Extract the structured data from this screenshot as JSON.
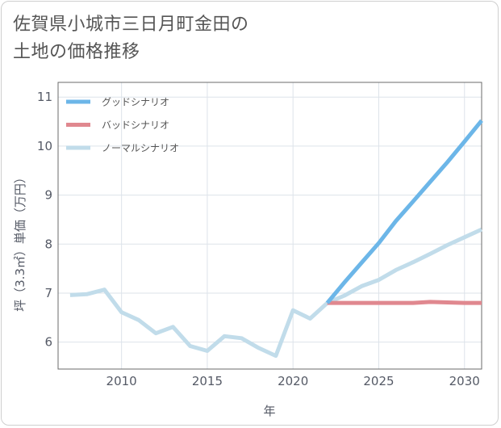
{
  "chart_data": {
    "type": "line",
    "title": "佐賀県小城市三日月町金田の土地の価格推移",
    "title_lines": [
      "佐賀県小城市三日月町金田の",
      "土地の価格推移"
    ],
    "xlabel": "年",
    "ylabel": "坪（3.3㎡）単価（万円）",
    "xlim": [
      2006.3,
      2031
    ],
    "ylim": [
      5.45,
      11.3
    ],
    "x_ticks": [
      2010,
      2015,
      2020,
      2025,
      2030
    ],
    "y_ticks": [
      6,
      7,
      8,
      9,
      10,
      11
    ],
    "grid": true,
    "legend_position": "top-left",
    "series": [
      {
        "name": "グッドシナリオ",
        "color": "#6cb6e8",
        "x": [
          2022,
          2023,
          2024,
          2025,
          2026,
          2027,
          2028,
          2029,
          2030,
          2031
        ],
        "values": [
          6.8,
          7.22,
          7.62,
          8.02,
          8.47,
          8.87,
          9.27,
          9.67,
          10.09,
          10.52
        ]
      },
      {
        "name": "バッドシナリオ",
        "color": "#e0888f",
        "x": [
          2022,
          2023,
          2024,
          2025,
          2026,
          2027,
          2028,
          2029,
          2030,
          2031
        ],
        "values": [
          6.8,
          6.8,
          6.8,
          6.8,
          6.8,
          6.8,
          6.82,
          6.81,
          6.8,
          6.8
        ]
      },
      {
        "name": "ノーマルシナリオ",
        "color": "#c1dcea",
        "x": [
          2007,
          2008,
          2009,
          2010,
          2011,
          2012,
          2013,
          2014,
          2015,
          2016,
          2017,
          2018,
          2019,
          2020,
          2021,
          2022,
          2023,
          2024,
          2025,
          2026,
          2027,
          2028,
          2029,
          2030,
          2031
        ],
        "values": [
          6.96,
          6.98,
          7.07,
          6.61,
          6.45,
          6.18,
          6.31,
          5.92,
          5.82,
          6.12,
          6.08,
          5.88,
          5.72,
          6.65,
          6.48,
          6.8,
          6.95,
          7.14,
          7.27,
          7.47,
          7.63,
          7.8,
          7.98,
          8.14,
          8.3
        ]
      }
    ]
  }
}
